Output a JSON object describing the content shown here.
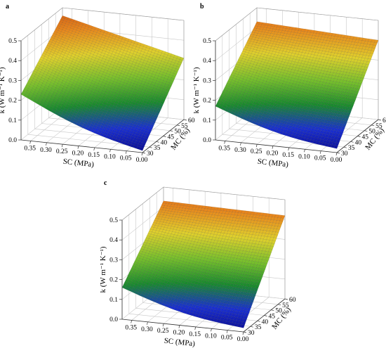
{
  "chart_data": [
    {
      "type": "surface",
      "panel_label": "a",
      "xlabel": "SC (MPa)",
      "ylabel": "MC (%)",
      "zlabel": "k (W m⁻¹ K⁻¹)",
      "x_ticks": [
        "0.35",
        "0.30",
        "0.25",
        "0.20",
        "0.15",
        "0.10",
        "0.05",
        "0.00"
      ],
      "y_ticks": [
        "30",
        "35",
        "40",
        "45",
        "50",
        "55",
        "60"
      ],
      "z_ticks": [
        "0.0",
        "0.1",
        "0.2",
        "0.3",
        "0.4",
        "0.5"
      ],
      "xlim": [
        0.0,
        0.38
      ],
      "ylim": [
        30,
        60
      ],
      "zlim": [
        0.0,
        0.5
      ],
      "corner_values": [
        {
          "sc": 0.38,
          "mc": 30,
          "k": 0.23
        },
        {
          "sc": 0.0,
          "mc": 30,
          "k": 0.01
        },
        {
          "sc": 0.38,
          "mc": 60,
          "k": 0.46
        },
        {
          "sc": 0.0,
          "mc": 60,
          "k": 0.31
        }
      ]
    },
    {
      "type": "surface",
      "panel_label": "b",
      "xlabel": "SC (MPa)",
      "ylabel": "MC (%)",
      "zlabel": "k (W m⁻¹ K⁻¹)",
      "x_ticks": [
        "0.35",
        "0.30",
        "0.25",
        "0.20",
        "0.15",
        "0.10",
        "0.05",
        "0.00"
      ],
      "y_ticks": [
        "30",
        "35",
        "40",
        "45",
        "50",
        "55",
        "60"
      ],
      "z_ticks": [
        "0.0",
        "0.1",
        "0.2",
        "0.3",
        "0.4",
        "0.5"
      ],
      "xlim": [
        0.0,
        0.38
      ],
      "ylim": [
        30,
        60
      ],
      "zlim": [
        0.0,
        0.5
      ],
      "corner_values": [
        {
          "sc": 0.38,
          "mc": 30,
          "k": 0.17
        },
        {
          "sc": 0.0,
          "mc": 30,
          "k": 0.02
        },
        {
          "sc": 0.38,
          "mc": 60,
          "k": 0.43
        },
        {
          "sc": 0.0,
          "mc": 60,
          "k": 0.4
        }
      ]
    },
    {
      "type": "surface",
      "panel_label": "c",
      "xlabel": "SC (MPa)",
      "ylabel": "MC (%)",
      "zlabel": "k (W m⁻¹ K⁻¹)",
      "x_ticks": [
        "0.35",
        "0.30",
        "0.25",
        "0.20",
        "0.15",
        "0.10",
        "0.05",
        "0.00"
      ],
      "y_ticks": [
        "30",
        "35",
        "40",
        "45",
        "50",
        "55",
        "60"
      ],
      "z_ticks": [
        "0.0",
        "0.1",
        "0.2",
        "0.3",
        "0.4",
        "0.5"
      ],
      "xlim": [
        0.0,
        0.38
      ],
      "ylim": [
        30,
        60
      ],
      "zlim": [
        0.0,
        0.5
      ],
      "corner_values": [
        {
          "sc": 0.38,
          "mc": 30,
          "k": 0.16
        },
        {
          "sc": 0.0,
          "mc": 30,
          "k": 0.02
        },
        {
          "sc": 0.38,
          "mc": 60,
          "k": 0.43
        },
        {
          "sc": 0.0,
          "mc": 60,
          "k": 0.42
        }
      ]
    }
  ],
  "colormap": [
    "#0a0a8c",
    "#1a2fd0",
    "#1a8a2e",
    "#78c02c",
    "#e0d02c",
    "#e8861c",
    "#c84a10"
  ]
}
